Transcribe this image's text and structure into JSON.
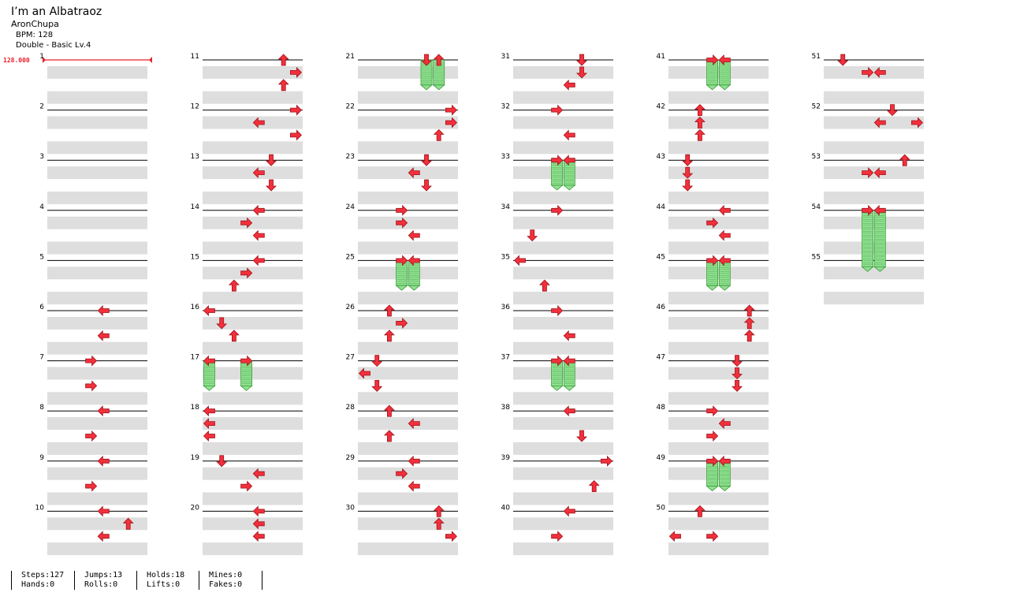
{
  "song": {
    "title": "I’m an Albatraoz",
    "artist": "AronChupa",
    "bpm_text": "BPM: 128",
    "difficulty_text": "Double - Basic Lv.4"
  },
  "bpm_marker": "128.000",
  "colors": {
    "arrow": "#f2303c",
    "arrow_edge": "#a01018",
    "hold_fill": "#8fe08f",
    "hold_edge": "#3a9a3a",
    "band": "#dedede",
    "measure_line": "#000000",
    "bpm_marker": "#e8202a"
  },
  "chart": {
    "lanes": 8,
    "lane_directions": [
      "left",
      "down",
      "up",
      "right",
      "left",
      "down",
      "up",
      "right"
    ],
    "measures": [
      {
        "n": 1,
        "notes": []
      },
      {
        "n": 2,
        "notes": []
      },
      {
        "n": 3,
        "notes": []
      },
      {
        "n": 4,
        "notes": []
      },
      {
        "n": 5,
        "notes": []
      },
      {
        "n": 6,
        "notes": [
          {
            "b": 0,
            "l": 4
          },
          {
            "b": 2,
            "l": 4
          }
        ]
      },
      {
        "n": 7,
        "notes": [
          {
            "b": 0,
            "l": 3
          },
          {
            "b": 2,
            "l": 3
          }
        ]
      },
      {
        "n": 8,
        "notes": [
          {
            "b": 0,
            "l": 4
          },
          {
            "b": 2,
            "l": 3
          }
        ]
      },
      {
        "n": 9,
        "notes": [
          {
            "b": 0,
            "l": 4
          },
          {
            "b": 2,
            "l": 3
          }
        ]
      },
      {
        "n": 10,
        "notes": [
          {
            "b": 0,
            "l": 4
          },
          {
            "b": 1,
            "l": 6
          },
          {
            "b": 2,
            "l": 4
          }
        ]
      },
      {
        "n": 11,
        "notes": [
          {
            "b": 0,
            "l": 6
          },
          {
            "b": 1,
            "l": 7
          },
          {
            "b": 2,
            "l": 6
          }
        ]
      },
      {
        "n": 12,
        "notes": [
          {
            "b": 0,
            "l": 7
          },
          {
            "b": 1,
            "l": 4
          },
          {
            "b": 2,
            "l": 7
          }
        ]
      },
      {
        "n": 13,
        "notes": [
          {
            "b": 0,
            "l": 5
          },
          {
            "b": 1,
            "l": 4
          },
          {
            "b": 2,
            "l": 5
          }
        ]
      },
      {
        "n": 14,
        "notes": [
          {
            "b": 0,
            "l": 4
          },
          {
            "b": 1,
            "l": 3
          },
          {
            "b": 2,
            "l": 4
          }
        ]
      },
      {
        "n": 15,
        "notes": [
          {
            "b": 0,
            "l": 4
          },
          {
            "b": 1,
            "l": 3
          },
          {
            "b": 2,
            "l": 2
          }
        ]
      },
      {
        "n": 16,
        "notes": [
          {
            "b": 0,
            "l": 0
          },
          {
            "b": 1,
            "l": 1
          },
          {
            "b": 2,
            "l": 2
          }
        ]
      },
      {
        "n": 17,
        "notes": [
          {
            "b": 0,
            "l": 0,
            "hold": 2
          },
          {
            "b": 0,
            "l": 3,
            "hold": 2
          }
        ]
      },
      {
        "n": 18,
        "notes": [
          {
            "b": 0,
            "l": 0
          },
          {
            "b": 1,
            "l": 0
          },
          {
            "b": 2,
            "l": 0
          }
        ]
      },
      {
        "n": 19,
        "notes": [
          {
            "b": 0,
            "l": 1
          },
          {
            "b": 1,
            "l": 4
          },
          {
            "b": 2,
            "l": 3
          }
        ]
      },
      {
        "n": 20,
        "notes": [
          {
            "b": 0,
            "l": 4
          },
          {
            "b": 1,
            "l": 4
          },
          {
            "b": 2,
            "l": 4
          }
        ]
      },
      {
        "n": 21,
        "notes": [
          {
            "b": 0,
            "l": 5,
            "hold": 2
          },
          {
            "b": 0,
            "l": 6,
            "hold": 2
          }
        ]
      },
      {
        "n": 22,
        "notes": [
          {
            "b": 0,
            "l": 7
          },
          {
            "b": 1,
            "l": 7
          },
          {
            "b": 2,
            "l": 6
          }
        ]
      },
      {
        "n": 23,
        "notes": [
          {
            "b": 0,
            "l": 5
          },
          {
            "b": 1,
            "l": 4
          },
          {
            "b": 2,
            "l": 5
          }
        ]
      },
      {
        "n": 24,
        "notes": [
          {
            "b": 0,
            "l": 3
          },
          {
            "b": 1,
            "l": 3
          },
          {
            "b": 2,
            "l": 4
          }
        ]
      },
      {
        "n": 25,
        "notes": [
          {
            "b": 0,
            "l": 3,
            "hold": 2
          },
          {
            "b": 0,
            "l": 4,
            "hold": 2
          }
        ]
      },
      {
        "n": 26,
        "notes": [
          {
            "b": 0,
            "l": 2
          },
          {
            "b": 1,
            "l": 3
          },
          {
            "b": 2,
            "l": 2
          }
        ]
      },
      {
        "n": 27,
        "notes": [
          {
            "b": 0,
            "l": 1
          },
          {
            "b": 1,
            "l": 0
          },
          {
            "b": 2,
            "l": 1
          }
        ]
      },
      {
        "n": 28,
        "notes": [
          {
            "b": 0,
            "l": 2
          },
          {
            "b": 1,
            "l": 4
          },
          {
            "b": 2,
            "l": 2
          }
        ]
      },
      {
        "n": 29,
        "notes": [
          {
            "b": 0,
            "l": 4
          },
          {
            "b": 1,
            "l": 3
          },
          {
            "b": 2,
            "l": 4
          }
        ]
      },
      {
        "n": 30,
        "notes": [
          {
            "b": 0,
            "l": 6
          },
          {
            "b": 1,
            "l": 6
          },
          {
            "b": 2,
            "l": 7
          }
        ]
      },
      {
        "n": 31,
        "notes": [
          {
            "b": 0,
            "l": 5
          },
          {
            "b": 1,
            "l": 5
          },
          {
            "b": 2,
            "l": 4
          }
        ]
      },
      {
        "n": 32,
        "notes": [
          {
            "b": 0,
            "l": 3
          },
          {
            "b": 2,
            "l": 4
          }
        ]
      },
      {
        "n": 33,
        "notes": [
          {
            "b": 0,
            "l": 3,
            "hold": 2
          },
          {
            "b": 0,
            "l": 4,
            "hold": 2
          }
        ]
      },
      {
        "n": 34,
        "notes": [
          {
            "b": 0,
            "l": 3
          },
          {
            "b": 2,
            "l": 1
          }
        ]
      },
      {
        "n": 35,
        "notes": [
          {
            "b": 0,
            "l": 0
          },
          {
            "b": 2,
            "l": 2
          }
        ]
      },
      {
        "n": 36,
        "notes": [
          {
            "b": 0,
            "l": 3
          },
          {
            "b": 2,
            "l": 4
          }
        ]
      },
      {
        "n": 37,
        "notes": [
          {
            "b": 0,
            "l": 3,
            "hold": 2
          },
          {
            "b": 0,
            "l": 4,
            "hold": 2
          }
        ]
      },
      {
        "n": 38,
        "notes": [
          {
            "b": 0,
            "l": 4
          },
          {
            "b": 2,
            "l": 5
          }
        ]
      },
      {
        "n": 39,
        "notes": [
          {
            "b": 0,
            "l": 7
          },
          {
            "b": 2,
            "l": 6
          }
        ]
      },
      {
        "n": 40,
        "notes": [
          {
            "b": 0,
            "l": 4
          },
          {
            "b": 2,
            "l": 3
          }
        ]
      },
      {
        "n": 41,
        "notes": [
          {
            "b": 0,
            "l": 3,
            "hold": 2
          },
          {
            "b": 0,
            "l": 4,
            "hold": 2
          }
        ]
      },
      {
        "n": 42,
        "notes": [
          {
            "b": 0,
            "l": 2
          },
          {
            "b": 1,
            "l": 2
          },
          {
            "b": 2,
            "l": 2
          }
        ]
      },
      {
        "n": 43,
        "notes": [
          {
            "b": 0,
            "l": 1
          },
          {
            "b": 1,
            "l": 1
          },
          {
            "b": 2,
            "l": 1
          }
        ]
      },
      {
        "n": 44,
        "notes": [
          {
            "b": 0,
            "l": 4
          },
          {
            "b": 1,
            "l": 3
          },
          {
            "b": 2,
            "l": 4
          }
        ]
      },
      {
        "n": 45,
        "notes": [
          {
            "b": 0,
            "l": 3,
            "hold": 2
          },
          {
            "b": 0,
            "l": 4,
            "hold": 2
          }
        ]
      },
      {
        "n": 46,
        "notes": [
          {
            "b": 0,
            "l": 6
          },
          {
            "b": 1,
            "l": 6
          },
          {
            "b": 2,
            "l": 6
          }
        ]
      },
      {
        "n": 47,
        "notes": [
          {
            "b": 0,
            "l": 5
          },
          {
            "b": 1,
            "l": 5
          },
          {
            "b": 2,
            "l": 5
          }
        ]
      },
      {
        "n": 48,
        "notes": [
          {
            "b": 0,
            "l": 3
          },
          {
            "b": 1,
            "l": 4
          },
          {
            "b": 2,
            "l": 3
          }
        ]
      },
      {
        "n": 49,
        "notes": [
          {
            "b": 0,
            "l": 3,
            "hold": 2
          },
          {
            "b": 0,
            "l": 4,
            "hold": 2
          }
        ]
      },
      {
        "n": 50,
        "notes": [
          {
            "b": 0,
            "l": 2
          },
          {
            "b": 2,
            "l": 0
          },
          {
            "b": 2,
            "l": 3
          }
        ]
      },
      {
        "n": 51,
        "notes": [
          {
            "b": 0,
            "l": 1
          },
          {
            "b": 1,
            "l": 3
          },
          {
            "b": 1,
            "l": 4
          }
        ]
      },
      {
        "n": 52,
        "notes": [
          {
            "b": 0,
            "l": 5
          },
          {
            "b": 1,
            "l": 4
          },
          {
            "b": 1,
            "l": 7
          }
        ]
      },
      {
        "n": 53,
        "notes": [
          {
            "b": 0,
            "l": 6
          },
          {
            "b": 1,
            "l": 3
          },
          {
            "b": 1,
            "l": 4
          }
        ]
      },
      {
        "n": 54,
        "notes": [
          {
            "b": 0,
            "l": 3,
            "hold": 4.5
          },
          {
            "b": 0,
            "l": 4,
            "hold": 4.5
          }
        ]
      },
      {
        "n": 55,
        "notes": []
      }
    ]
  },
  "stats": {
    "steps": "Steps:127",
    "hands": "Hands:0",
    "jumps": "Jumps:13",
    "rolls": "Rolls:0",
    "holds": "Holds:18",
    "lifts": "Lifts:0",
    "mines": "Mines:0",
    "fakes": "Fakes:0"
  }
}
